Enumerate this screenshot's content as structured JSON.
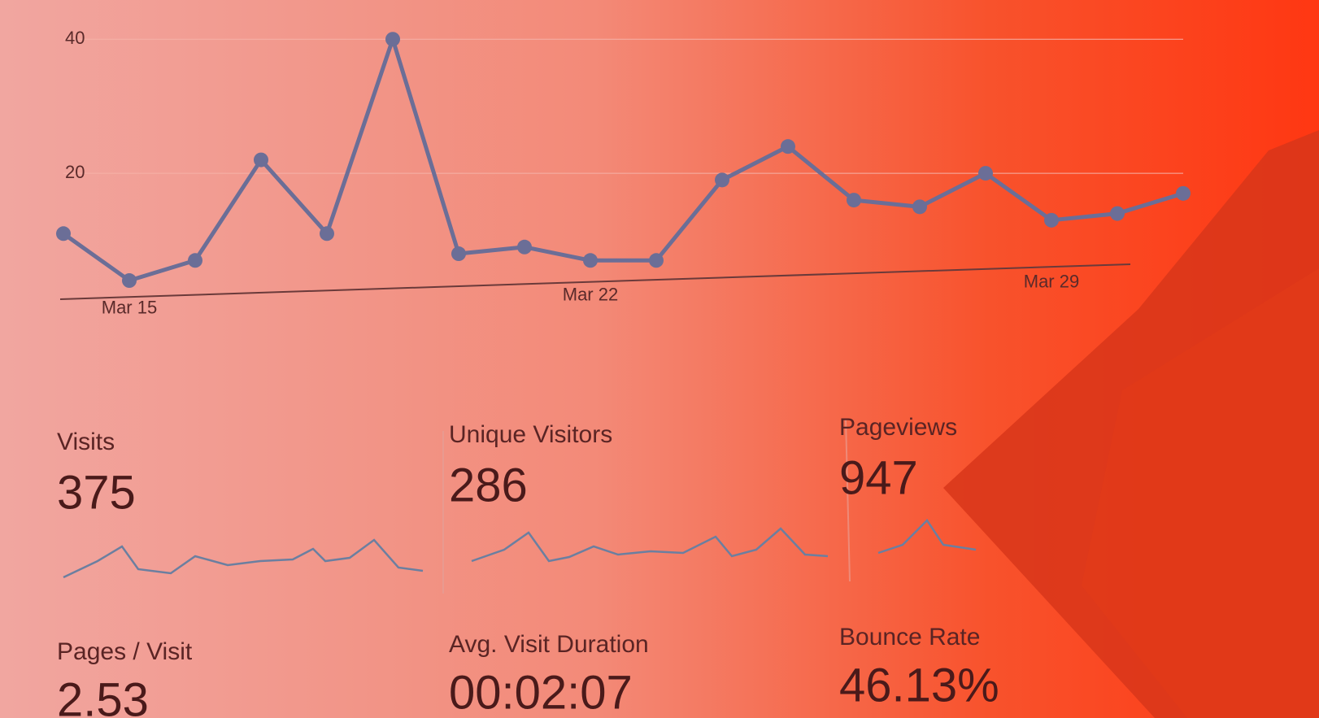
{
  "chart_data": {
    "type": "line",
    "categories": [
      null,
      "Mar 15",
      null,
      null,
      null,
      null,
      null,
      null,
      "Mar 22",
      null,
      null,
      null,
      null,
      null,
      null,
      "Mar 29",
      null,
      null
    ],
    "series": [
      {
        "color": "#6b6e97",
        "values": [
          11,
          4,
          7,
          22,
          11,
          40,
          8,
          9,
          7,
          7,
          19,
          24,
          16,
          15,
          20,
          13,
          14,
          17
        ]
      }
    ],
    "ylim": [
      0,
      45
    ],
    "yticks": [
      20,
      40
    ]
  },
  "metrics": [
    {
      "label": "Visits",
      "value": "375"
    },
    {
      "label": "Unique Visitors",
      "value": "286"
    },
    {
      "label": "Pageviews",
      "value": "947"
    },
    {
      "label": "Pages / Visit",
      "value": "2.53"
    },
    {
      "label": "Avg. Visit Duration",
      "value": "00:02:07"
    },
    {
      "label": "Bounce Rate",
      "value": "46.13%"
    }
  ]
}
